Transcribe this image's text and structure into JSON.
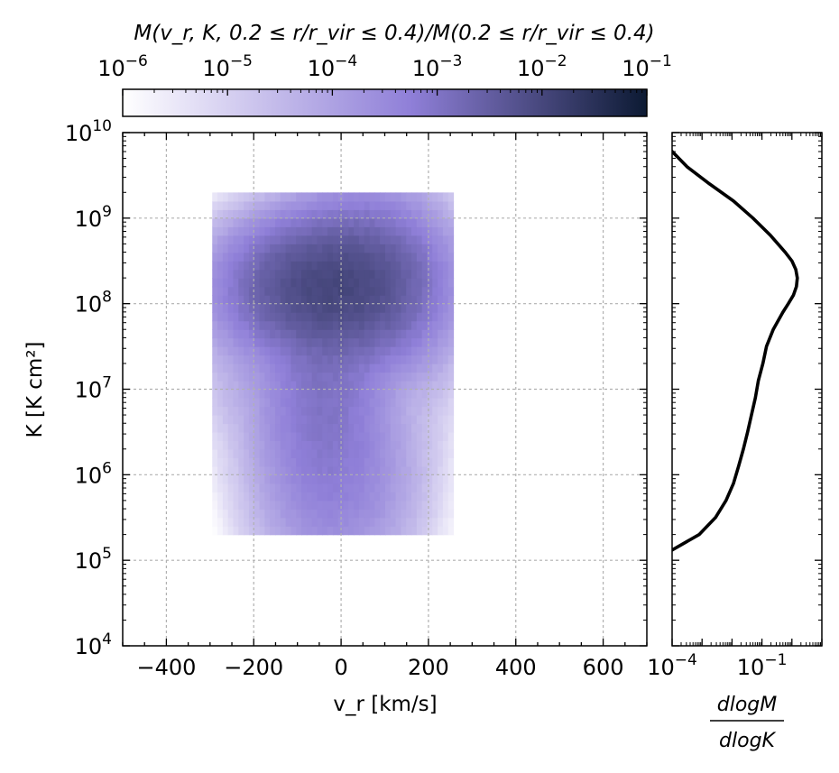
{
  "colorbar": {
    "title": "M(v_r, K, 0.2 ≤ r/r_vir ≤ 0.4)/M(0.2 ≤ r/r_vir ≤ 0.4)",
    "scale": "log",
    "range": [
      1e-06,
      0.1
    ],
    "tick_exponents": [
      "−6",
      "−5",
      "−4",
      "−3",
      "−2",
      "−1"
    ],
    "cmap_light": "#ffffff",
    "cmap_mid": "#8f7fd8",
    "cmap_dark": "#0c1a33"
  },
  "chart_data": [
    {
      "type": "heatmap",
      "name": "radial-velocity-entropy-histogram",
      "xlabel": "v_r [km/s]",
      "ylabel": "K [K cm²]",
      "xlim": [
        -500,
        700
      ],
      "ylim_log10": [
        4,
        10
      ],
      "yscale": "log",
      "grid": true,
      "x_ticks": [
        "−400",
        "−200",
        "0",
        "200",
        "400",
        "600"
      ],
      "y_tick_exponents": [
        "4",
        "5",
        "6",
        "7",
        "8",
        "9",
        "10"
      ],
      "cell_size": {
        "dvr_kms": 12,
        "dlog10K": 0.1
      },
      "value_model": {
        "description": "estimated mass-fraction blobs (log10 peak value, center v_r, center log10 K, sigma v_r, sigma log10 K)",
        "components": [
          {
            "log10_peak": -2.1,
            "vr": -40,
            "log10K": 8.2,
            "svr": 95,
            "slogK": 0.35
          },
          {
            "log10_peak": -2.5,
            "vr": 60,
            "log10K": 8.25,
            "svr": 80,
            "slogK": 0.45
          },
          {
            "log10_peak": -3.0,
            "vr": -40,
            "log10K": 7.2,
            "svr": 70,
            "slogK": 0.75
          },
          {
            "log10_peak": -3.4,
            "vr": -10,
            "log10K": 6.0,
            "svr": 85,
            "slogK": 0.6
          },
          {
            "log10_peak": -4.2,
            "vr": -220,
            "log10K": 7.6,
            "svr": 55,
            "slogK": 0.6
          },
          {
            "log10_peak": -4.3,
            "vr": 200,
            "log10K": 7.9,
            "svr": 40,
            "slogK": 0.7
          }
        ],
        "support": {
          "vr_min": -295,
          "vr_max": 250,
          "log10K_min": 5.3,
          "log10K_max": 9.3
        },
        "min_value_log10": -6
      }
    },
    {
      "type": "line",
      "name": "dlogM-dlogK-profile",
      "xlabel": "dlogM / dlogK",
      "xscale": "log",
      "xlim_log10": [
        -4,
        1
      ],
      "x_tick_exponents": [
        "−4",
        "−1"
      ],
      "yscale": "log",
      "ylim_log10": [
        4,
        10
      ],
      "log10K": [
        5.12,
        5.3,
        5.5,
        5.7,
        5.9,
        6.1,
        6.3,
        6.5,
        6.7,
        6.9,
        7.1,
        7.3,
        7.5,
        7.7,
        7.9,
        8.0,
        8.1,
        8.2,
        8.3,
        8.4,
        8.5,
        8.6,
        8.8,
        9.0,
        9.2,
        9.4,
        9.6,
        9.78
      ],
      "log10_dlogM_dlogK": [
        -4.0,
        -3.1,
        -2.55,
        -2.2,
        -1.95,
        -1.78,
        -1.62,
        -1.48,
        -1.35,
        -1.22,
        -1.12,
        -0.97,
        -0.85,
        -0.62,
        -0.3,
        -0.12,
        0.05,
        0.15,
        0.18,
        0.13,
        0.0,
        -0.22,
        -0.72,
        -1.3,
        -1.95,
        -2.75,
        -3.5,
        -4.0
      ]
    }
  ]
}
